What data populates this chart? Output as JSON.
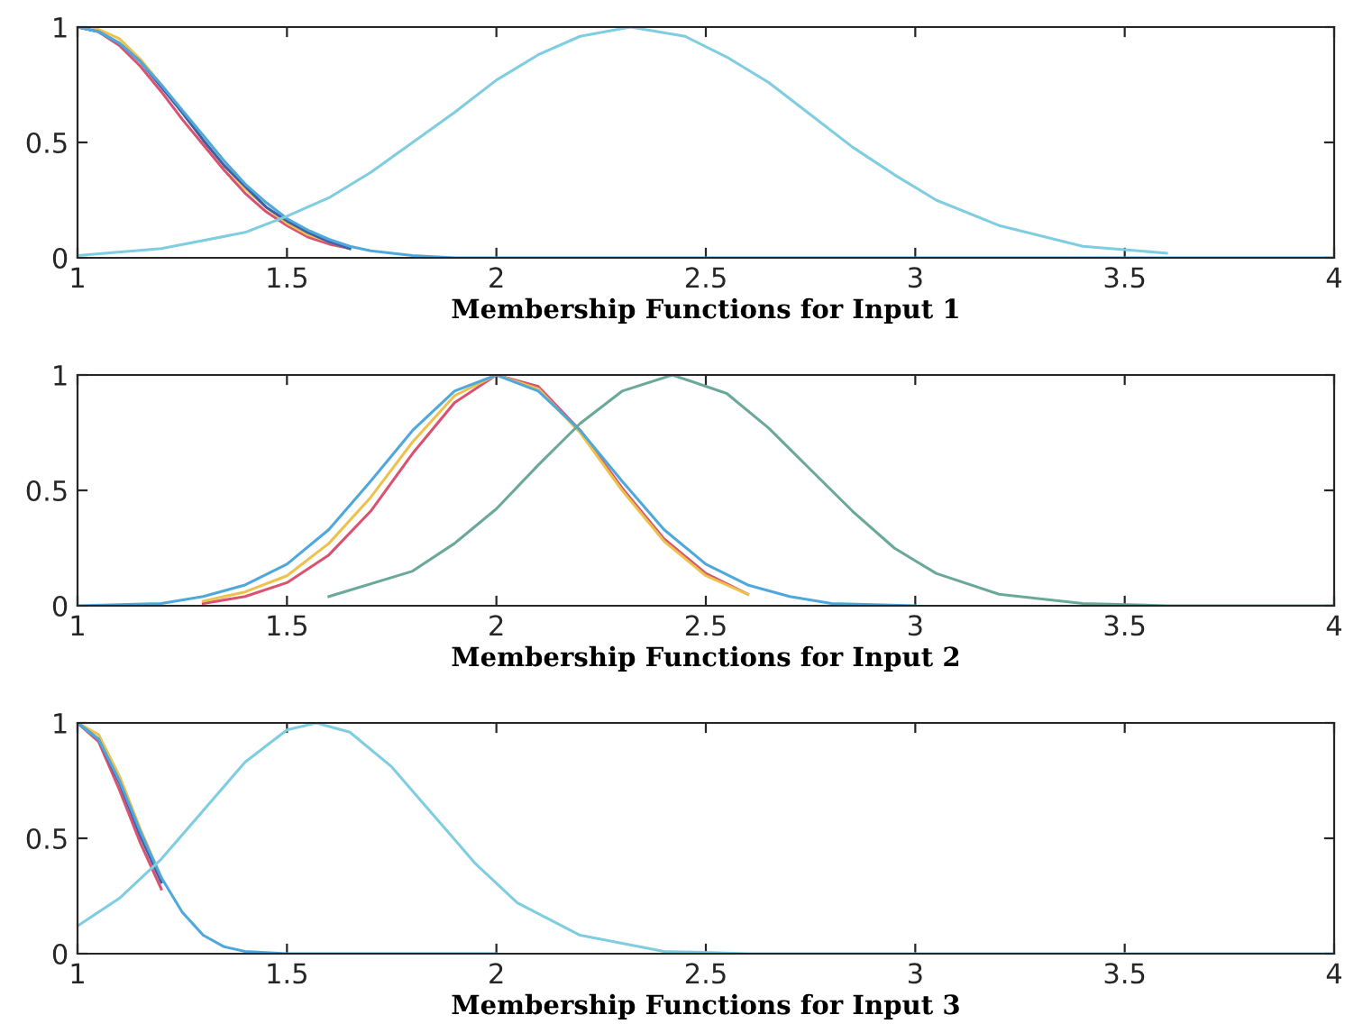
{
  "chart_data": [
    {
      "type": "line",
      "xlabel": "Membership Functions for Input 1",
      "xlim": [
        1,
        4
      ],
      "ylim": [
        0,
        1
      ],
      "xticks": [
        1,
        1.5,
        2,
        2.5,
        3,
        3.5,
        4
      ],
      "yticks": [
        0,
        0.5,
        1
      ],
      "series": [
        {
          "color": "#d95370",
          "x": [
            1,
            1.05,
            1.1,
            1.15,
            1.2,
            1.25,
            1.3,
            1.35,
            1.4,
            1.45,
            1.5,
            1.55,
            1.6,
            1.65
          ],
          "values": [
            1,
            0.98,
            0.92,
            0.83,
            0.72,
            0.6,
            0.49,
            0.38,
            0.28,
            0.2,
            0.14,
            0.09,
            0.06,
            0.04
          ]
        },
        {
          "color": "#edc24c",
          "x": [
            1,
            1.05,
            1.1,
            1.15,
            1.2,
            1.25,
            1.3,
            1.35,
            1.4,
            1.45,
            1.5,
            1.55,
            1.6,
            1.65
          ],
          "values": [
            1,
            0.99,
            0.95,
            0.86,
            0.75,
            0.63,
            0.51,
            0.4,
            0.3,
            0.22,
            0.15,
            0.1,
            0.07,
            0.04
          ]
        },
        {
          "color": "#3f5ea8",
          "x": [
            1,
            1.05,
            1.1,
            1.15,
            1.2,
            1.25,
            1.3,
            1.35,
            1.4,
            1.45,
            1.5,
            1.55,
            1.6,
            1.65
          ],
          "values": [
            1,
            0.98,
            0.93,
            0.85,
            0.74,
            0.63,
            0.51,
            0.4,
            0.31,
            0.22,
            0.16,
            0.11,
            0.07,
            0.04
          ]
        },
        {
          "color": "#4fa8dc",
          "x": [
            1,
            1.05,
            1.1,
            1.15,
            1.2,
            1.25,
            1.3,
            1.35,
            1.4,
            1.45,
            1.5,
            1.55,
            1.6,
            1.65,
            1.7,
            1.8,
            1.9,
            2.0,
            2.5,
            3,
            3.5,
            4
          ],
          "values": [
            1,
            0.98,
            0.93,
            0.85,
            0.75,
            0.64,
            0.53,
            0.42,
            0.32,
            0.24,
            0.17,
            0.12,
            0.08,
            0.05,
            0.03,
            0.01,
            0,
            0,
            0,
            0,
            0,
            0
          ]
        },
        {
          "color": "#7fcde0",
          "x": [
            1,
            1.2,
            1.4,
            1.5,
            1.6,
            1.7,
            1.8,
            1.9,
            2.0,
            2.1,
            2.2,
            2.32,
            2.45,
            2.55,
            2.65,
            2.75,
            2.85,
            2.95,
            3.05,
            3.2,
            3.4,
            3.6
          ],
          "values": [
            0.01,
            0.04,
            0.11,
            0.18,
            0.26,
            0.37,
            0.5,
            0.63,
            0.77,
            0.88,
            0.96,
            1,
            0.96,
            0.87,
            0.76,
            0.62,
            0.48,
            0.36,
            0.25,
            0.14,
            0.05,
            0.02
          ]
        }
      ]
    },
    {
      "type": "line",
      "xlabel": "Membership Functions for Input 2",
      "xlim": [
        1,
        4
      ],
      "ylim": [
        0,
        1
      ],
      "xticks": [
        1,
        1.5,
        2,
        2.5,
        3,
        3.5,
        4
      ],
      "yticks": [
        0,
        0.5,
        1
      ],
      "series": [
        {
          "color": "#d95370",
          "x": [
            1.3,
            1.4,
            1.5,
            1.6,
            1.7,
            1.8,
            1.9,
            2.0,
            2.1,
            2.2,
            2.3,
            2.4,
            2.5,
            2.6
          ],
          "values": [
            0.01,
            0.04,
            0.1,
            0.22,
            0.41,
            0.66,
            0.88,
            1,
            0.95,
            0.76,
            0.51,
            0.29,
            0.14,
            0.05
          ]
        },
        {
          "color": "#edc24c",
          "x": [
            1.3,
            1.4,
            1.5,
            1.6,
            1.7,
            1.8,
            1.9,
            2.0,
            2.1,
            2.2,
            2.3,
            2.4,
            2.5,
            2.6
          ],
          "values": [
            0.02,
            0.06,
            0.13,
            0.27,
            0.47,
            0.71,
            0.91,
            1,
            0.94,
            0.75,
            0.5,
            0.28,
            0.13,
            0.05
          ]
        },
        {
          "color": "#4fa8dc",
          "x": [
            1,
            1.2,
            1.3,
            1.4,
            1.5,
            1.6,
            1.7,
            1.8,
            1.9,
            2.0,
            2.1,
            2.2,
            2.3,
            2.4,
            2.5,
            2.6,
            2.7,
            2.8,
            3
          ],
          "values": [
            0,
            0.01,
            0.04,
            0.09,
            0.18,
            0.33,
            0.54,
            0.76,
            0.93,
            1,
            0.93,
            0.76,
            0.54,
            0.33,
            0.18,
            0.09,
            0.04,
            0.01,
            0
          ]
        },
        {
          "color": "#6aa89a",
          "x": [
            1.6,
            1.8,
            1.9,
            2.0,
            2.1,
            2.2,
            2.3,
            2.42,
            2.55,
            2.65,
            2.75,
            2.85,
            2.95,
            3.05,
            3.2,
            3.4,
            3.6,
            4
          ],
          "values": [
            0.04,
            0.15,
            0.27,
            0.42,
            0.61,
            0.79,
            0.93,
            1,
            0.92,
            0.77,
            0.59,
            0.41,
            0.25,
            0.14,
            0.05,
            0.01,
            0,
            0
          ]
        }
      ]
    },
    {
      "type": "line",
      "xlabel": "Membership Functions for Input 3",
      "xlim": [
        1,
        4
      ],
      "ylim": [
        0,
        1
      ],
      "xticks": [
        1,
        1.5,
        2,
        2.5,
        3,
        3.5,
        4
      ],
      "yticks": [
        0,
        0.5,
        1
      ],
      "series": [
        {
          "color": "#d95370",
          "x": [
            1,
            1.05,
            1.1,
            1.15,
            1.2
          ],
          "values": [
            1,
            0.92,
            0.71,
            0.48,
            0.28
          ]
        },
        {
          "color": "#edc24c",
          "x": [
            1,
            1.05,
            1.1,
            1.15,
            1.2
          ],
          "values": [
            1,
            0.95,
            0.77,
            0.54,
            0.33
          ]
        },
        {
          "color": "#3f5ea8",
          "x": [
            1,
            1.05,
            1.1,
            1.15,
            1.2
          ],
          "values": [
            1,
            0.93,
            0.74,
            0.51,
            0.31
          ]
        },
        {
          "color": "#4fa8dc",
          "x": [
            1,
            1.05,
            1.1,
            1.15,
            1.2,
            1.25,
            1.3,
            1.35,
            1.4,
            1.5,
            2
          ],
          "values": [
            1,
            0.93,
            0.75,
            0.53,
            0.33,
            0.18,
            0.08,
            0.03,
            0.01,
            0,
            0
          ]
        },
        {
          "color": "#7fcde0",
          "x": [
            1,
            1.1,
            1.2,
            1.3,
            1.4,
            1.5,
            1.57,
            1.65,
            1.75,
            1.85,
            1.95,
            2.05,
            2.2,
            2.4,
            2.6,
            4
          ],
          "values": [
            0.12,
            0.24,
            0.41,
            0.62,
            0.83,
            0.97,
            1,
            0.96,
            0.81,
            0.6,
            0.39,
            0.22,
            0.08,
            0.01,
            0,
            0
          ]
        }
      ]
    }
  ]
}
